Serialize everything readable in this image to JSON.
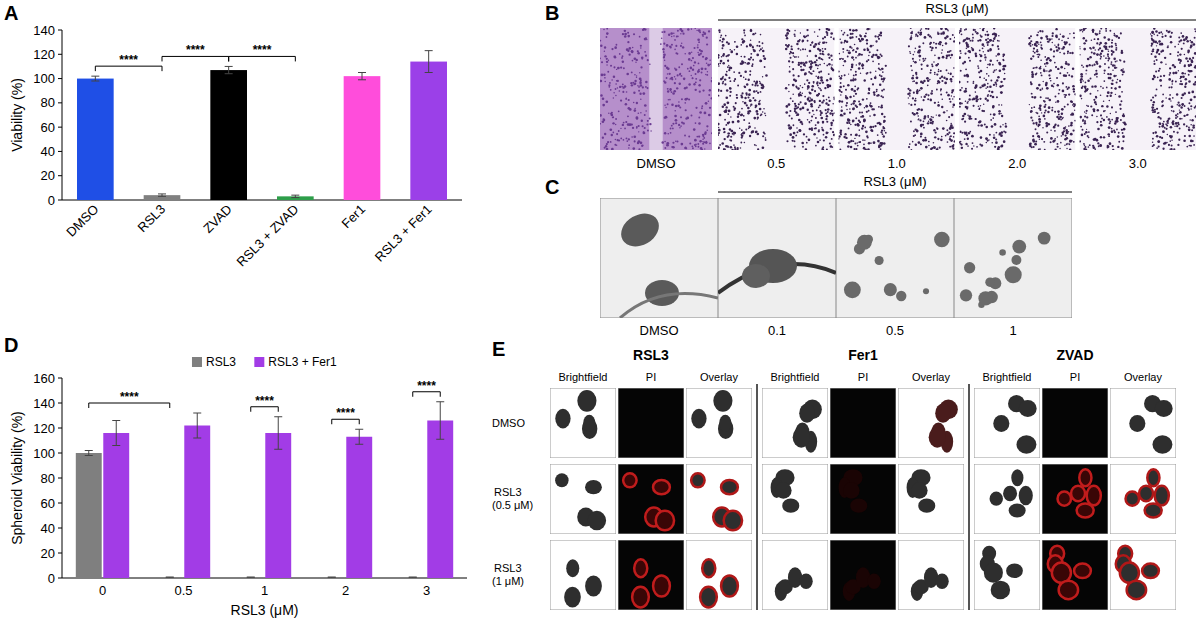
{
  "chart_data": [
    {
      "panel": "A",
      "type": "bar",
      "categories": [
        "DMSO",
        "RSL3",
        "ZVAD",
        "RSL3 + ZVAD",
        "Fer1",
        "RSL3 + Fer1"
      ],
      "values": [
        100,
        4,
        107,
        3,
        102,
        114
      ],
      "errors": [
        2,
        1,
        3,
        1,
        3,
        9
      ],
      "colors": [
        "#1f4fe6",
        "#808080",
        "#000000",
        "#2e9e4a",
        "#ff4ddb",
        "#9b40e8"
      ],
      "y_label": "Viability (%)",
      "ylim": [
        0,
        140
      ],
      "yticks": [
        0,
        20,
        40,
        60,
        80,
        100,
        120,
        140
      ],
      "annotations": [
        {
          "text": "****",
          "categories": [
            "DMSO",
            "RSL3"
          ]
        },
        {
          "text": "****",
          "categories": [
            "RSL3",
            "ZVAD"
          ]
        },
        {
          "text": "****",
          "categories": [
            "ZVAD",
            "RSL3 + ZVAD"
          ]
        }
      ]
    },
    {
      "panel": "D",
      "type": "bar",
      "categories": [
        "0",
        "0.5",
        "1",
        "2",
        "3"
      ],
      "x_label": "RSL3 (μM)",
      "y_label": "Spheroid Viability (%)",
      "ylim": [
        0,
        160
      ],
      "yticks": [
        0,
        20,
        40,
        60,
        80,
        100,
        120,
        140,
        160
      ],
      "legend": "top",
      "series": [
        {
          "name": "RSL3",
          "color": "#7f7f7f",
          "values": [
            100,
            0.5,
            0.5,
            0.5,
            0.5
          ],
          "errors": [
            2,
            0.3,
            0.3,
            0.3,
            0.3
          ]
        },
        {
          "name": "RSL3 + Fer1",
          "color": "#a23ce6",
          "values": [
            116,
            122,
            116,
            113,
            126
          ],
          "errors": [
            10,
            10,
            13,
            6,
            15
          ]
        }
      ],
      "annotations": [
        {
          "text": "****",
          "categories": [
            "0",
            "0.5"
          ]
        },
        {
          "text": "****",
          "categories": [
            "1"
          ]
        },
        {
          "text": "****",
          "categories": [
            "2"
          ]
        },
        {
          "text": "****",
          "categories": [
            "3"
          ]
        }
      ]
    }
  ],
  "images": [
    {
      "panel": "B",
      "header": "RSL3 (μM)",
      "labels": [
        "DMSO",
        "0.5",
        "1.0",
        "2.0",
        "3.0"
      ]
    },
    {
      "panel": "C",
      "header": "RSL3 (μM)",
      "labels": [
        "DMSO",
        "0.1",
        "0.5",
        "1"
      ]
    },
    {
      "panel": "E",
      "groups": [
        "RSL3",
        "Fer1",
        "ZVAD"
      ],
      "columns": [
        "Brightfield",
        "PI",
        "Overlay"
      ],
      "rows": [
        "DMSO",
        "RSL3 (0.5 μM)",
        "RSL3 (1 μM)"
      ]
    }
  ]
}
